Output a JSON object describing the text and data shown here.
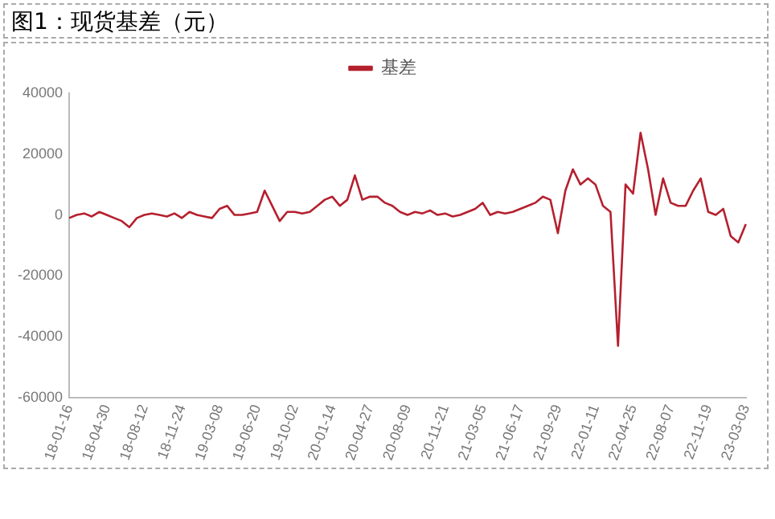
{
  "chart_data": {
    "type": "line",
    "title": "图1：现货基差（元）",
    "categories": [
      "18-01-16",
      null,
      null,
      null,
      null,
      "18-04-30",
      null,
      null,
      null,
      null,
      "18-08-12",
      null,
      null,
      null,
      null,
      "18-11-24",
      null,
      null,
      null,
      null,
      "19-03-08",
      null,
      null,
      null,
      null,
      "19-06-20",
      null,
      null,
      null,
      null,
      "19-10-02",
      null,
      null,
      null,
      null,
      "20-01-14",
      null,
      null,
      null,
      null,
      "20-04-27",
      null,
      null,
      null,
      null,
      "20-08-09",
      null,
      null,
      null,
      null,
      "20-11-21",
      null,
      null,
      null,
      null,
      "21-03-05",
      null,
      null,
      null,
      null,
      "21-06-17",
      null,
      null,
      null,
      null,
      "21-09-29",
      null,
      null,
      null,
      null,
      "22-01-11",
      null,
      null,
      null,
      null,
      "22-04-25",
      null,
      null,
      null,
      null,
      "22-08-07",
      null,
      null,
      null,
      null,
      "22-11-19",
      null,
      null,
      null,
      null,
      "23-03-03"
    ],
    "series": [
      {
        "name": "基差",
        "color": "#b5202e",
        "values": [
          -1000,
          0,
          500,
          -500,
          1000,
          0,
          -1000,
          -2000,
          -4000,
          -1000,
          0,
          500,
          0,
          -500,
          500,
          -1000,
          1000,
          0,
          -500,
          -1000,
          2000,
          3000,
          0,
          0,
          500,
          1000,
          8000,
          3000,
          -2000,
          1000,
          1000,
          500,
          1000,
          3000,
          5000,
          6000,
          3000,
          5000,
          13000,
          5000,
          6000,
          6000,
          4000,
          3000,
          1000,
          0,
          1000,
          500,
          1500,
          0,
          500,
          -500,
          0,
          1000,
          2000,
          4000,
          0,
          1000,
          500,
          1000,
          2000,
          3000,
          4000,
          6000,
          5000,
          -6000,
          8000,
          15000,
          10000,
          12000,
          10000,
          3000,
          1000,
          -43000,
          10000,
          7000,
          27000,
          15000,
          0,
          12000,
          4000,
          3000,
          3000,
          8000,
          12000,
          1000,
          0,
          2000,
          -7000,
          -9000,
          -3000
        ]
      }
    ],
    "ylim": [
      -60000,
      40000
    ],
    "yticks": [
      -60000,
      -40000,
      -20000,
      0,
      20000,
      40000
    ],
    "grid": false,
    "legend": "top",
    "marker": "none",
    "line_style": "solid"
  }
}
